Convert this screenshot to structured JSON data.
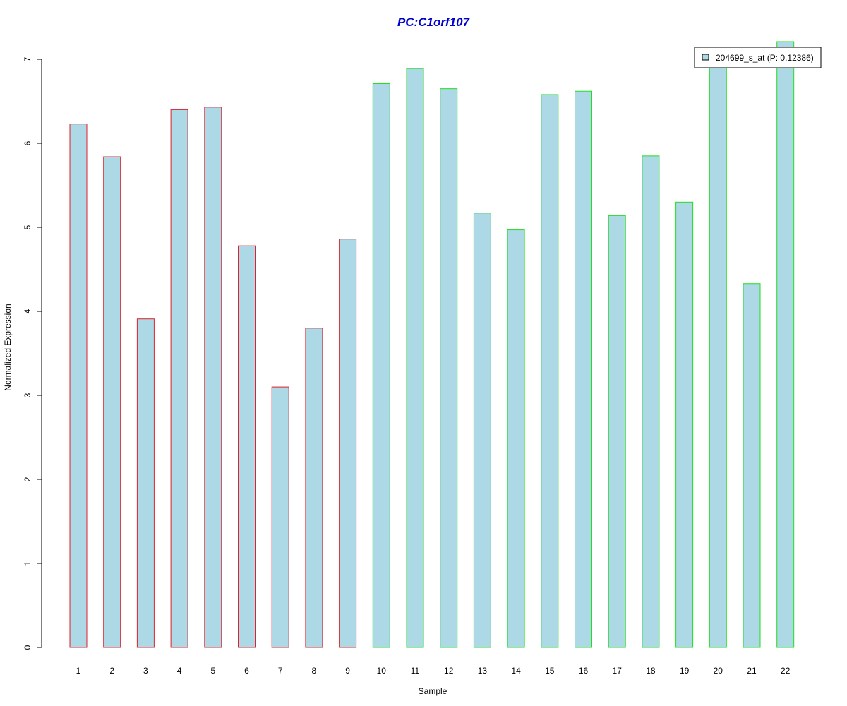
{
  "chart_data": {
    "type": "bar",
    "title": "PC:C1orf107",
    "xlabel": "Sample",
    "ylabel": "Normalized Expression",
    "ylim": [
      0,
      7
    ],
    "yticks": [
      0,
      1,
      2,
      3,
      4,
      5,
      6,
      7
    ],
    "categories": [
      "1",
      "2",
      "3",
      "4",
      "5",
      "6",
      "7",
      "8",
      "9",
      "10",
      "11",
      "12",
      "13",
      "14",
      "15",
      "16",
      "17",
      "18",
      "19",
      "20",
      "21",
      "22"
    ],
    "series": [
      {
        "name": "204699_s_at (P: 0.12386)",
        "values": [
          6.23,
          5.84,
          3.91,
          6.4,
          6.43,
          4.78,
          3.1,
          3.8,
          4.86,
          6.71,
          6.89,
          6.65,
          5.17,
          4.97,
          6.58,
          6.62,
          5.14,
          5.85,
          5.3,
          6.94,
          4.33,
          7.21
        ]
      }
    ],
    "bar_border_groups": [
      "red",
      "red",
      "red",
      "red",
      "red",
      "red",
      "red",
      "red",
      "red",
      "green",
      "green",
      "green",
      "green",
      "green",
      "green",
      "green",
      "green",
      "green",
      "green",
      "green",
      "green",
      "green"
    ],
    "colors": {
      "title": "#0000cc",
      "bar_fill": "#add8e6",
      "border_red": "#e0202a",
      "border_green": "#22dd22",
      "axis": "#000000"
    },
    "legend": {
      "position": "top-right",
      "label": "204699_s_at (P: 0.12386)"
    },
    "grid": false
  }
}
